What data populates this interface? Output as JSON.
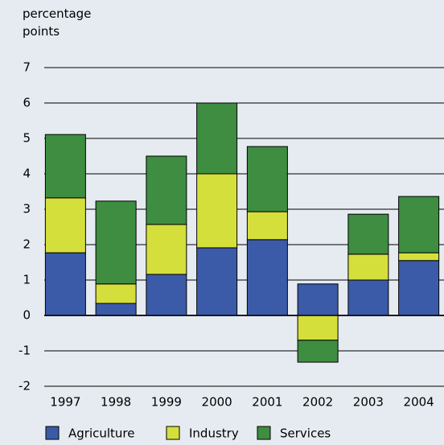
{
  "chart_data": {
    "type": "stacked-bar",
    "y_label": "percentage points",
    "categories": [
      "1997",
      "1998",
      "1999",
      "2000",
      "2001",
      "2002",
      "2003",
      "2004"
    ],
    "series": [
      {
        "name": "Agriculture",
        "color": "#3b5ba9",
        "values": [
          1.77,
          0.34,
          1.16,
          1.91,
          2.14,
          0.89,
          1.0,
          1.55
        ]
      },
      {
        "name": "Industry",
        "color": "#d5df3c",
        "values": [
          1.55,
          0.55,
          1.41,
          2.09,
          0.79,
          -0.7,
          0.73,
          0.22
        ]
      },
      {
        "name": "Services",
        "color": "#3e8d41",
        "values": [
          1.79,
          2.34,
          1.93,
          2.0,
          1.84,
          -0.62,
          1.13,
          1.59
        ]
      }
    ],
    "ylim": [
      -2,
      7
    ],
    "yticks": [
      -2,
      -1,
      0,
      1,
      2,
      3,
      4,
      5,
      6,
      7
    ],
    "grid": true
  }
}
